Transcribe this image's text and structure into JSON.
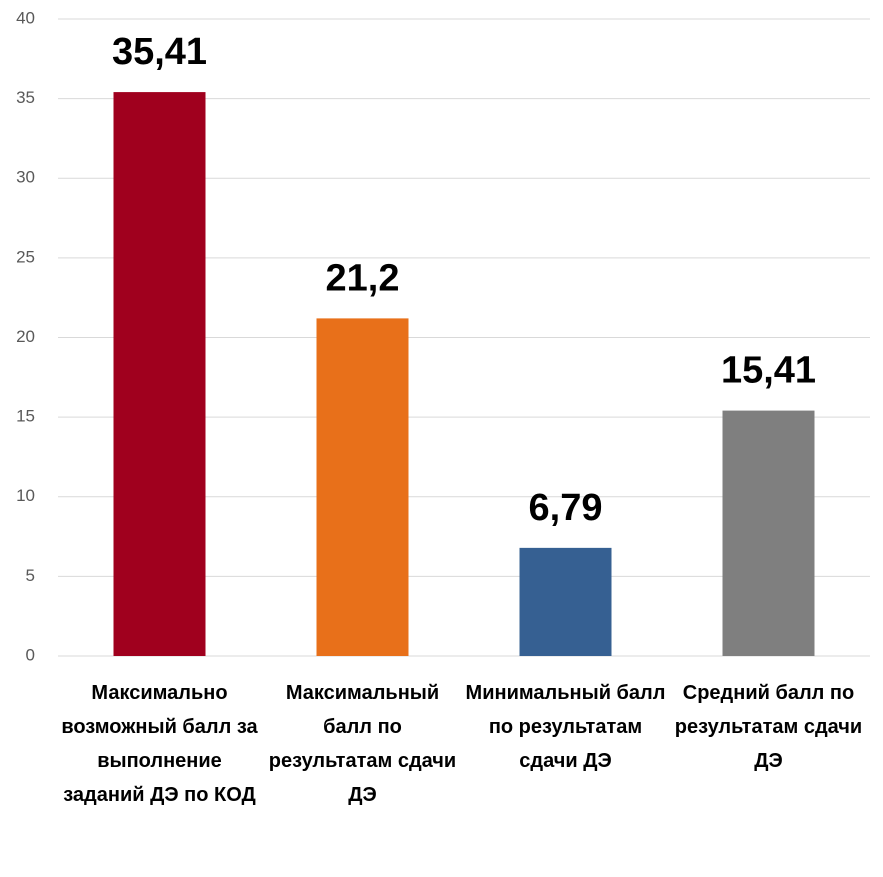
{
  "chart_data": {
    "type": "bar",
    "categories": [
      "Максимально возможный балл за выполнение заданий ДЭ по КОД",
      "Максимальный балл по результатам сдачи ДЭ",
      "Минимальный балл по результатам сдачи ДЭ",
      "Средний балл по результатам сдачи ДЭ"
    ],
    "values": [
      35.41,
      21.2,
      6.79,
      15.41
    ],
    "value_labels": [
      "35,41",
      "21,2",
      "6,79",
      "15,41"
    ],
    "colors": [
      "#a0001e",
      "#e8701a",
      "#366092",
      "#7f7f7f"
    ],
    "ylim": [
      0,
      40
    ],
    "yticks": [
      0,
      5,
      10,
      15,
      20,
      25,
      30,
      35,
      40
    ],
    "grid": true
  }
}
